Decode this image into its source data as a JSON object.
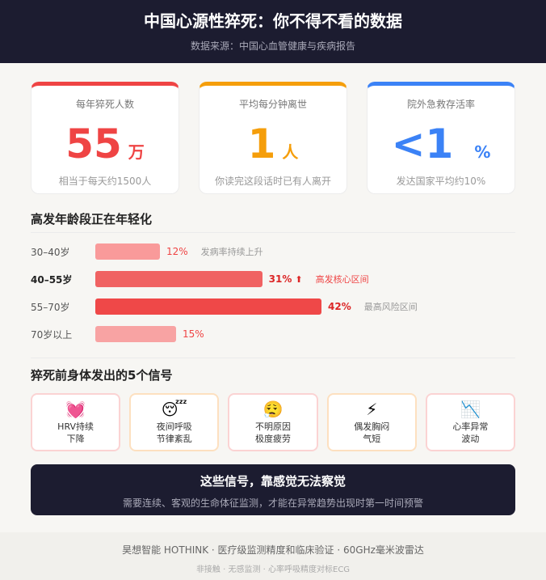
{
  "header": {
    "title": "中国心源性猝死：你不得不看的数据",
    "source": "数据来源：中国心血管健康与疾病报告"
  },
  "stats": [
    {
      "label": "每年猝死人数",
      "value": "55",
      "unit": "万",
      "note": "相当于每天约1500人",
      "color": "#ef4444"
    },
    {
      "label": "平均每分钟离世",
      "value": "1",
      "unit": "人",
      "note": "你读完这段话时已有人离开",
      "color": "#f59e0b"
    },
    {
      "label": "院外急救存活率",
      "value": "<1",
      "unit": "%",
      "note": "发达国家平均约10%",
      "color": "#3b82f6"
    }
  ],
  "age_section": {
    "title": "高发年龄段正在年轻化",
    "rows": [
      {
        "age": "30–40岁",
        "percent": 12,
        "label": "12%",
        "tag": "发病率持续上升",
        "color": "#f99a9a",
        "pct_color": "#ef4444",
        "tag_color": "#999999"
      },
      {
        "age": "40–55岁",
        "percent": 31,
        "label": "31%",
        "arrow": "⬆",
        "tag": "高发核心区间",
        "color": "#f06262",
        "pct_color": "#dc2626",
        "tag_color": "#ef4444"
      },
      {
        "age": "55–70岁",
        "percent": 42,
        "label": "42%",
        "tag": "最高风险区间",
        "color": "#ef4848",
        "pct_color": "#dc2626",
        "tag_color": "#999999"
      },
      {
        "age": "70岁以上",
        "percent": 15,
        "label": "15%",
        "tag": "",
        "color": "#f8a3a3",
        "pct_color": "#ef4444",
        "tag_color": "#999999"
      }
    ]
  },
  "signals_section": {
    "title": "猝死前身体发出的5个信号",
    "items": [
      {
        "icon": "💓",
        "icon_name": "beating-heart-icon",
        "line1": "HRV持续",
        "line2": "下降"
      },
      {
        "icon": "😴",
        "icon_name": "sleeping-face-icon",
        "line1": "夜间呼吸",
        "line2": "节律紊乱"
      },
      {
        "icon": "😮‍💨",
        "icon_name": "exhaling-face-icon",
        "line1": "不明原因",
        "line2": "极度疲劳"
      },
      {
        "icon": "⚡",
        "icon_name": "lightning-icon",
        "line1": "偶发胸闷",
        "line2": "气短"
      },
      {
        "icon": "📉",
        "icon_name": "chart-decreasing-icon",
        "line1": "心率异常",
        "line2": "波动"
      }
    ]
  },
  "cta": {
    "title": "这些信号，靠感觉无法察觉",
    "text": "需要连续、客观的生命体征监测，才能在异常趋势出现时第一时间预警"
  },
  "footer": {
    "line1": "昊想智能 HOTHINK  ·  医疗级监测精度和临床验证  ·  60GHz毫米波雷达",
    "line2": "非接触  ·  无感监测  ·  心率呼吸精度对标ECG"
  }
}
